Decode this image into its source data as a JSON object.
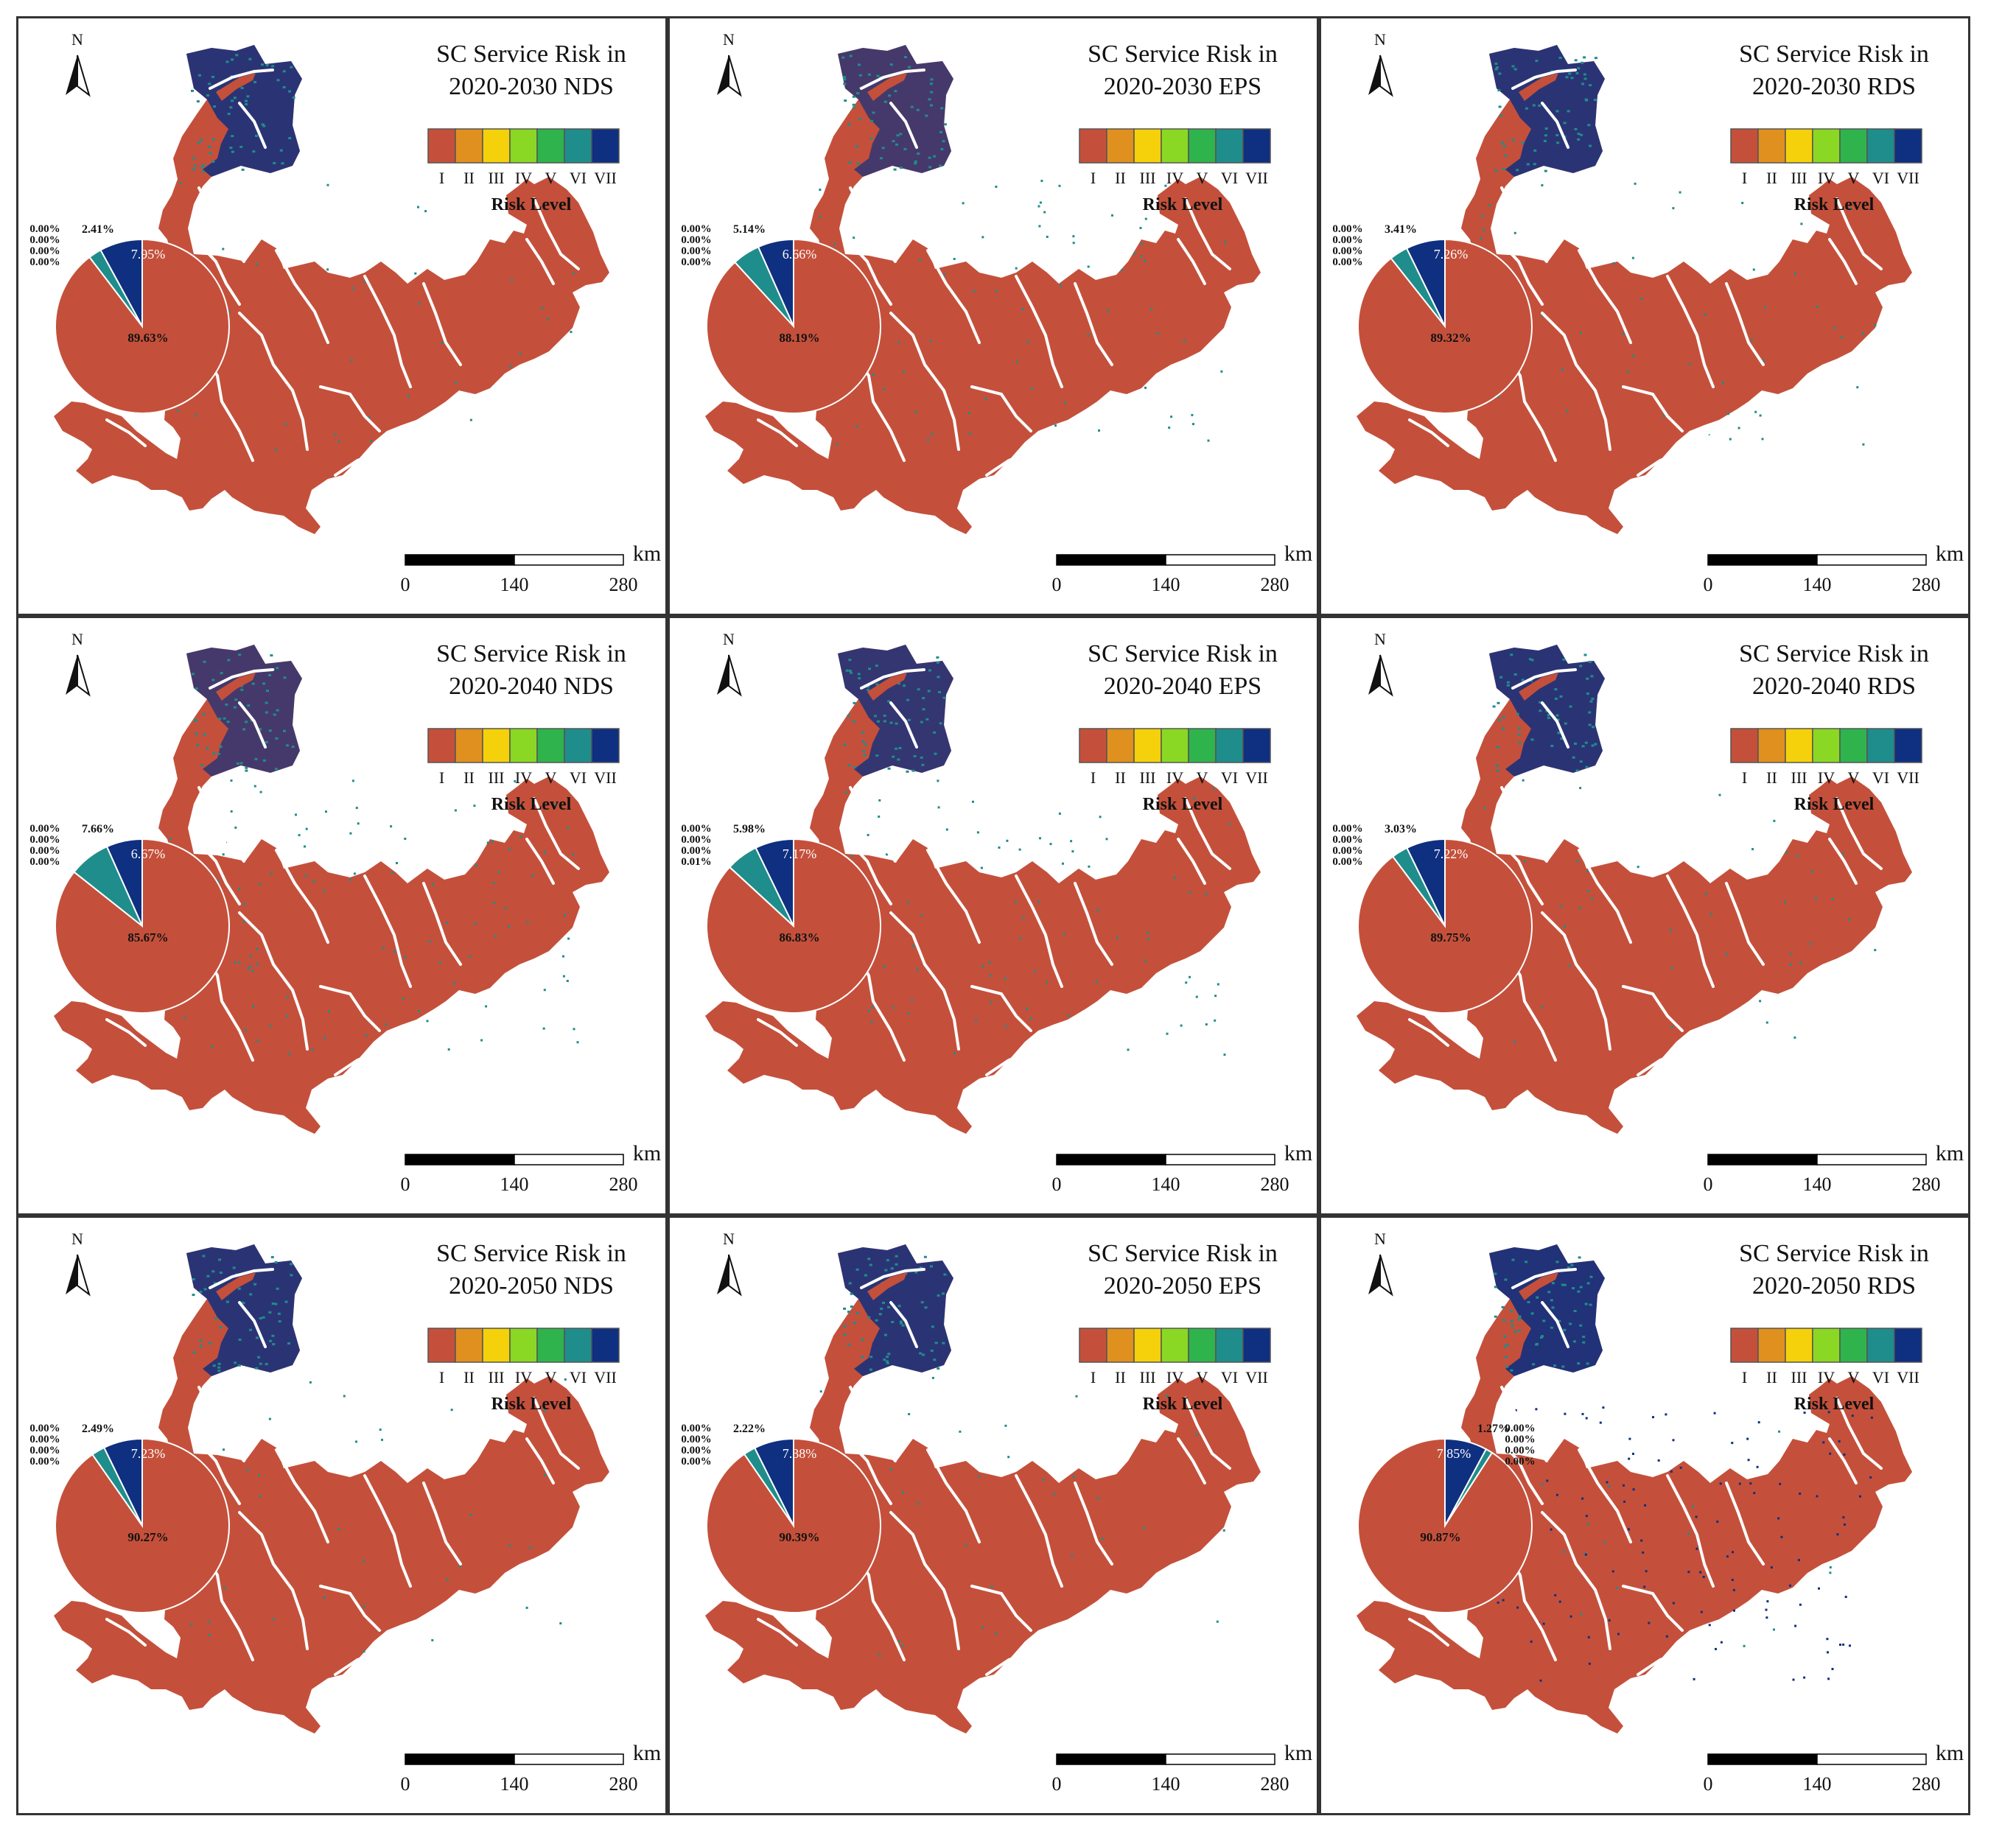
{
  "figure": {
    "panels": [
      {
        "title_line1": "SC Service Risk in",
        "title_line2": "2020-2030 NDS",
        "pie": [
          89.63,
          0,
          0,
          0,
          0,
          2.41,
          7.95
        ],
        "pie_labels": [
          "89.63%",
          "0.00%",
          "0.00%",
          "0.00%",
          "0.00%",
          "2.41%",
          "7.95%"
        ],
        "north_dark_share": 0.85
      },
      {
        "title_line1": "SC Service Risk in",
        "title_line2": "2020-2030 EPS",
        "pie": [
          88.19,
          0,
          0,
          0,
          0,
          5.14,
          6.66
        ],
        "pie_labels": [
          "88.19%",
          "0.00%",
          "0.00%",
          "0.00%",
          "0.00%",
          "5.14%",
          "6.66%"
        ],
        "north_dark_share": 0.7
      },
      {
        "title_line1": "SC Service Risk in",
        "title_line2": "2020-2030 RDS",
        "pie": [
          89.32,
          0,
          0,
          0,
          0,
          3.41,
          7.26
        ],
        "pie_labels": [
          "89.32%",
          "0.00%",
          "0.00%",
          "0.00%",
          "0.00%",
          "3.41%",
          "7.26%"
        ],
        "north_dark_share": 0.85
      },
      {
        "title_line1": "SC Service Risk in",
        "title_line2": "2020-2040 NDS",
        "pie": [
          85.67,
          0,
          0,
          0,
          0,
          7.66,
          6.67
        ],
        "pie_labels": [
          "85.67%",
          "0.00%",
          "0.00%",
          "0.00%",
          "0.00%",
          "7.66%",
          "6.67%"
        ],
        "north_dark_share": 0.7
      },
      {
        "title_line1": "SC Service Risk in",
        "title_line2": "2020-2040 EPS",
        "pie": [
          86.83,
          0,
          0,
          0,
          0.01,
          5.98,
          7.17
        ],
        "pie_labels": [
          "86.83%",
          "0.00%",
          "0.00%",
          "0.00%",
          "0.01%",
          "5.98%",
          "7.17%"
        ],
        "north_dark_share": 0.8
      },
      {
        "title_line1": "SC Service Risk in",
        "title_line2": "2020-2040 RDS",
        "pie": [
          89.75,
          0,
          0,
          0,
          0,
          3.03,
          7.22
        ],
        "pie_labels": [
          "89.75%",
          "0.00%",
          "0.00%",
          "0.00%",
          "0.00%",
          "3.03%",
          "7.22%"
        ],
        "north_dark_share": 0.85
      },
      {
        "title_line1": "SC Service Risk in",
        "title_line2": "2020-2050 NDS",
        "pie": [
          90.27,
          0,
          0,
          0,
          0,
          2.49,
          7.23
        ],
        "pie_labels": [
          "90.27%",
          "0.00%",
          "0.00%",
          "0.00%",
          "0.00%",
          "2.49%",
          "7.23%"
        ],
        "north_dark_share": 0.85
      },
      {
        "title_line1": "SC Service Risk in",
        "title_line2": "2020-2050 EPS",
        "pie": [
          90.39,
          0,
          0,
          0,
          0,
          2.22,
          7.38
        ],
        "pie_labels": [
          "90.39%",
          "0.00%",
          "0.00%",
          "0.00%",
          "0.00%",
          "2.22%",
          "7.38%"
        ],
        "north_dark_share": 0.85
      },
      {
        "title_line1": "SC Service Risk in",
        "title_line2": "2020-2050 RDS",
        "pie": [
          90.87,
          0,
          0,
          0,
          0,
          1.27,
          7.85
        ],
        "pie_labels": [
          "90.87%",
          "0.00%",
          "0.00%",
          "0.00%",
          "0.00%",
          "1.27%",
          "7.85%"
        ],
        "north_dark_share": 0.9,
        "pie_mirrored": true
      }
    ]
  },
  "legend": {
    "levels": [
      "I",
      "II",
      "III",
      "IV",
      "V",
      "VI",
      "VII"
    ],
    "colors": [
      "#c4503b",
      "#e0901f",
      "#f4d10a",
      "#8ad824",
      "#2fb34c",
      "#1f8d8b",
      "#0f2f80"
    ],
    "title": "Risk Level"
  },
  "north_arrow": {
    "label": "N"
  },
  "scale_bar": {
    "unit": "km",
    "ticks": [
      "0",
      "140",
      "280"
    ]
  },
  "colors": {
    "land": "#c4503b",
    "river": "#ffffff",
    "level6": "#1f8d8b",
    "level7": "#0f2f80"
  }
}
